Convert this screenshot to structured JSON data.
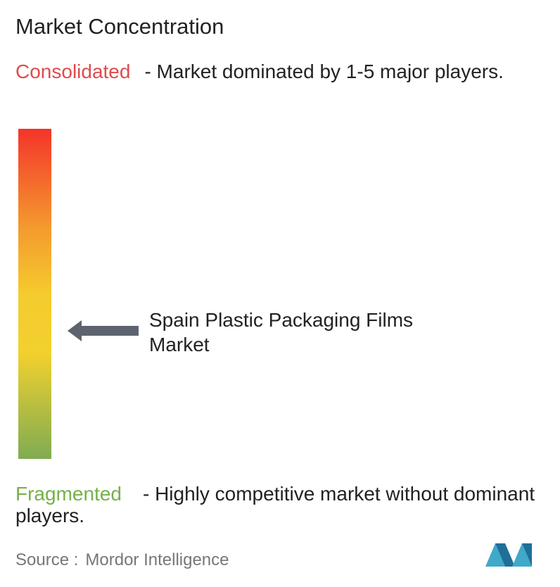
{
  "title": "Market Concentration",
  "top": {
    "label": "Consolidated",
    "description": "- Market dominated by 1-5 major players."
  },
  "marker": {
    "label": "Spain Plastic Packaging Films Market"
  },
  "bottom": {
    "label": "Fragmented",
    "description": "- Highly competitive market without dominant players."
  },
  "source": {
    "prefix": "Source :",
    "name": "Mordor Intelligence"
  }
}
